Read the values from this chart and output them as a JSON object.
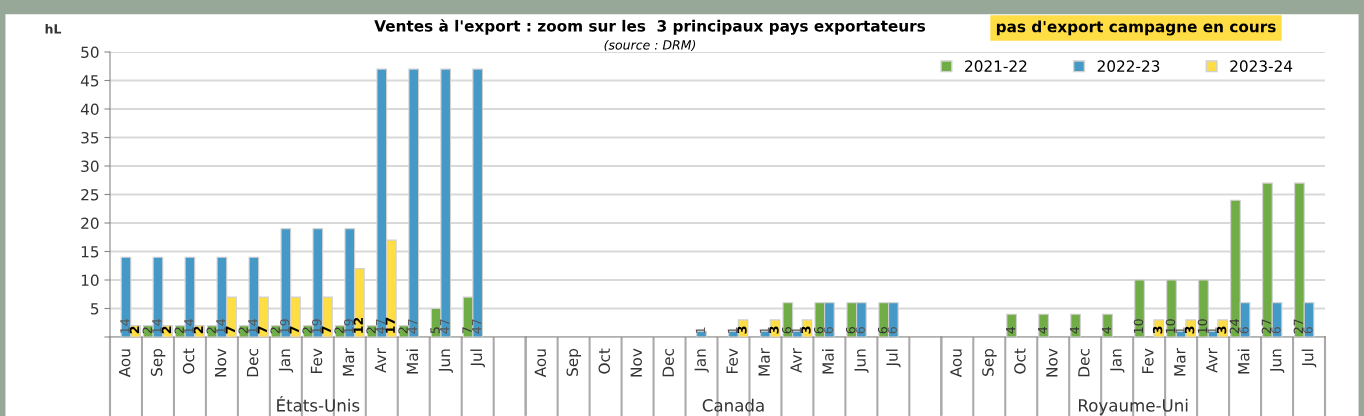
{
  "chart_data": {
    "type": "bar",
    "title": "Ventes à l'export : zoom sur les  3 principaux pays exportateurs",
    "subtitle": "(source : DRM)",
    "ylabel": "hL",
    "annotations": [
      "pas d'export campagne en cours",
      "États-Unis",
      "Canada",
      "Royaume-Uni"
    ],
    "categories": [
      "Aou",
      "Sep",
      "Oct",
      "Nov",
      "Dec",
      "Jan",
      "Fev",
      "Mar",
      "Avr",
      "Mai",
      "Jun",
      "Jul",
      null,
      "Aou",
      "Sep",
      "Oct",
      "Nov",
      "Dec",
      "Jan",
      "Fev",
      "Mar",
      "Avr",
      "Mai",
      "Jun",
      "Jul",
      null,
      "Aou",
      "Sep",
      "Oct",
      "Nov",
      "Dec",
      "Jan",
      "Fev",
      "Mar",
      "Avr",
      "Mai",
      "Jun",
      "Jul"
    ],
    "series": [
      {
        "name": "2021-22",
        "color": "#70ad47",
        "values": [
          null,
          2,
          2,
          2,
          2,
          2,
          2,
          2,
          2,
          2,
          5,
          7,
          null,
          null,
          null,
          null,
          null,
          null,
          null,
          null,
          null,
          6,
          6,
          6,
          6,
          null,
          null,
          null,
          4,
          4,
          4,
          4,
          10,
          10,
          10,
          24,
          27,
          27
        ]
      },
      {
        "name": "2022-23",
        "color": "#4599c6",
        "values": [
          14,
          14,
          14,
          14,
          14,
          19,
          19,
          19,
          47,
          47,
          47,
          47,
          null,
          null,
          null,
          null,
          null,
          null,
          1,
          1,
          1,
          1,
          6,
          6,
          6,
          null,
          null,
          null,
          null,
          null,
          null,
          null,
          null,
          1,
          1,
          6,
          6,
          6
        ]
      },
      {
        "name": "2023-24",
        "color": "#ffdd44",
        "values": [
          2,
          2,
          2,
          7,
          7,
          7,
          7,
          12,
          17,
          null,
          null,
          null,
          null,
          null,
          null,
          null,
          null,
          null,
          null,
          3,
          3,
          3,
          null,
          null,
          null,
          null,
          null,
          null,
          null,
          null,
          null,
          null,
          3,
          3,
          3,
          null,
          null,
          null
        ]
      }
    ],
    "ylim": [
      0,
      50
    ],
    "yticks": [
      {
        "value": 0,
        "label": null
      },
      5,
      10,
      15,
      20,
      25,
      30,
      35,
      40,
      45,
      50
    ],
    "grid": "y",
    "legend": "top right",
    "data_labels": true
  }
}
